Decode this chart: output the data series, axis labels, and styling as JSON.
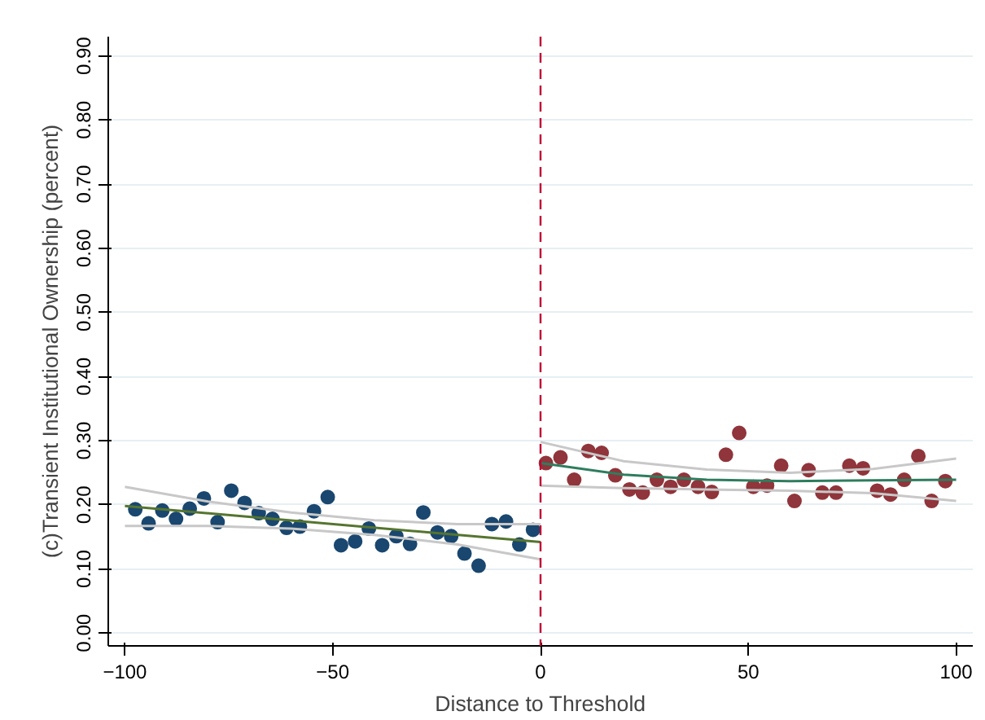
{
  "chart_data": {
    "type": "scatter",
    "xlabel": "Distance to Threshold",
    "ylabel": "(c)Transient Institutional Ownership (percent)",
    "xlim": [
      -104,
      104
    ],
    "ylim": [
      -0.02,
      0.93
    ],
    "xticks": [
      -100,
      -50,
      0,
      50,
      100
    ],
    "yticks": [
      {
        "value": 0,
        "label": "0.00"
      },
      {
        "value": 0.1,
        "label": "0.10"
      },
      {
        "value": 0.2,
        "label": "0.20"
      },
      {
        "value": 0.3,
        "label": "0.30"
      },
      {
        "value": 0.4,
        "label": "0.40"
      },
      {
        "value": 0.5,
        "label": "0.50"
      },
      {
        "value": 0.6,
        "label": "0.60"
      },
      {
        "value": 0.7,
        "label": "0.70"
      },
      {
        "value": 0.8,
        "label": "0.80"
      },
      {
        "value": 0.9,
        "label": "0.90"
      }
    ],
    "grid": "y",
    "ref_lines": [
      {
        "axis": "x",
        "value": 0,
        "color": "#c10534",
        "line_style": "dashed"
      }
    ],
    "series": [
      {
        "marker": "circle",
        "color": "#1a476f",
        "x": [
          -97.5,
          -94.3,
          -91,
          -87.7,
          -84.4,
          -81,
          -77.7,
          -74.4,
          -71.2,
          -67.8,
          -64.5,
          -61.1,
          -57.9,
          -54.5,
          -51.2,
          -48,
          -44.6,
          -41.3,
          -38.1,
          -34.7,
          -31.4,
          -28.2,
          -24.8,
          -21.5,
          -18.3,
          -14.9,
          -11.7,
          -8.3,
          -5.1,
          -1.8
        ],
        "values": [
          0.193,
          0.171,
          0.191,
          0.178,
          0.194,
          0.21,
          0.173,
          0.222,
          0.203,
          0.187,
          0.178,
          0.164,
          0.166,
          0.19,
          0.212,
          0.137,
          0.143,
          0.163,
          0.137,
          0.151,
          0.139,
          0.188,
          0.157,
          0.151,
          0.124,
          0.105,
          0.17,
          0.174,
          0.138,
          0.161
        ]
      },
      {
        "marker": "circle",
        "color": "#90353b",
        "x": [
          1.3,
          4.8,
          8.1,
          11.5,
          14.7,
          18,
          21.4,
          24.6,
          28,
          31.3,
          34.5,
          37.9,
          41.2,
          44.6,
          47.8,
          51.2,
          54.5,
          57.9,
          61.1,
          64.5,
          67.8,
          71.1,
          74.3,
          77.6,
          81,
          84.2,
          87.5,
          90.9,
          94.1,
          97.4
        ],
        "values": [
          0.265,
          0.274,
          0.239,
          0.284,
          0.281,
          0.246,
          0.224,
          0.219,
          0.239,
          0.228,
          0.239,
          0.228,
          0.22,
          0.278,
          0.312,
          0.228,
          0.23,
          0.261,
          0.206,
          0.254,
          0.219,
          0.219,
          0.261,
          0.257,
          0.222,
          0.216,
          0.239,
          0.276,
          0.206,
          0.237
        ]
      },
      {
        "type": "line",
        "color": "#c8c8c8",
        "x": [
          -100,
          -80,
          -60,
          -40,
          -20,
          0
        ],
        "values": [
          0.228,
          0.205,
          0.188,
          0.176,
          0.17,
          0.17
        ]
      },
      {
        "type": "line",
        "color": "#c8c8c8",
        "x": [
          -100,
          -80,
          -60,
          -40,
          -20,
          0
        ],
        "values": [
          0.167,
          0.167,
          0.163,
          0.153,
          0.138,
          0.115
        ]
      },
      {
        "type": "line",
        "color": "#55752f",
        "x": [
          -100,
          0
        ],
        "values": [
          0.198,
          0.142
        ]
      },
      {
        "type": "line",
        "color": "#c8c8c8",
        "x": [
          0,
          20,
          40,
          60,
          80,
          100
        ],
        "values": [
          0.298,
          0.268,
          0.255,
          0.25,
          0.256,
          0.272
        ]
      },
      {
        "type": "line",
        "color": "#c8c8c8",
        "x": [
          0,
          20,
          40,
          60,
          80,
          100
        ],
        "values": [
          0.23,
          0.226,
          0.224,
          0.222,
          0.218,
          0.206
        ]
      },
      {
        "type": "line",
        "color": "#2e7d5e",
        "x": [
          0,
          20,
          40,
          60,
          80,
          100
        ],
        "values": [
          0.265,
          0.247,
          0.239,
          0.237,
          0.238,
          0.239
        ]
      }
    ]
  }
}
